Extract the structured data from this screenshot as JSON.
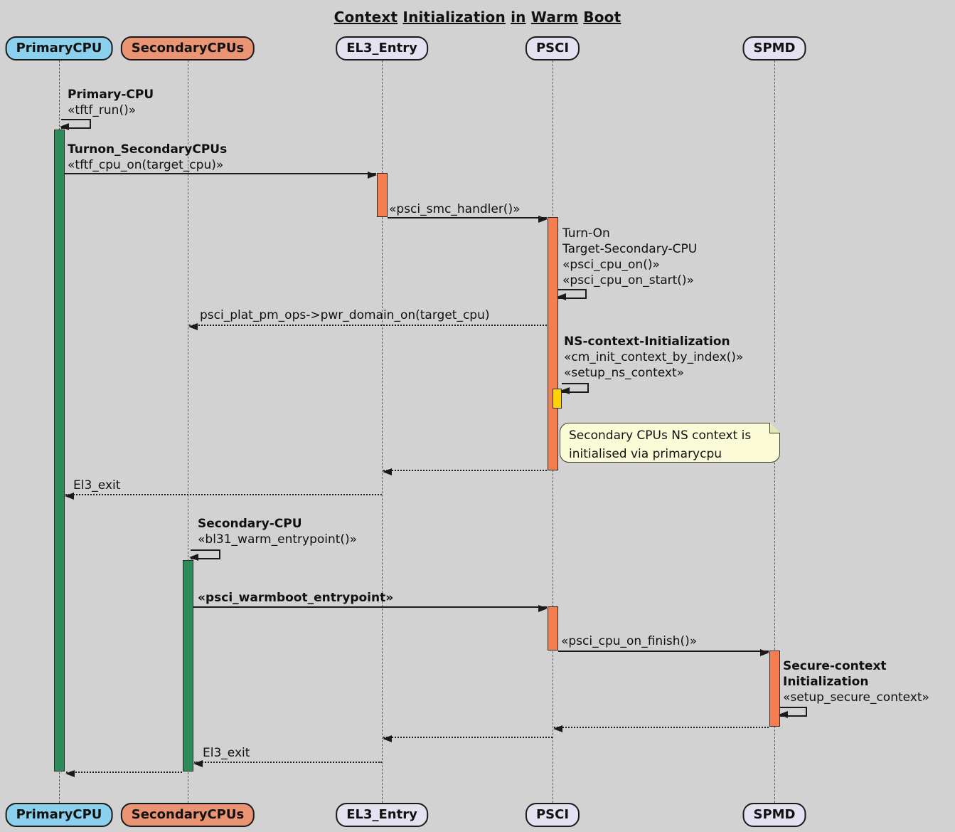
{
  "title": "Context Initialization in Warm Boot",
  "participants": [
    {
      "name": "PrimaryCPU"
    },
    {
      "name": "SecondaryCPUs"
    },
    {
      "name": "EL3_Entry"
    },
    {
      "name": "PSCI"
    },
    {
      "name": "SPMD"
    }
  ],
  "messages": {
    "primary_cpu_run": {
      "title": "Primary-CPU",
      "call": "«tftf_run()»"
    },
    "turnon_secondary": {
      "title": "Turnon_SecondaryCPUs",
      "call": "«tftf_cpu_on(target_cpu)»"
    },
    "smc_handler": {
      "call": "«psci_smc_handler()»"
    },
    "turn_on_target": {
      "line1": "Turn-On",
      "line2": "Target-Secondary-CPU",
      "call1": "«psci_cpu_on()»",
      "call2": "«psci_cpu_on_start()»"
    },
    "pwr_domain_on": {
      "call": "psci_plat_pm_ops->pwr_domain_on(target_cpu)"
    },
    "ns_context_init": {
      "title": "NS-context-Initialization",
      "call1": "«cm_init_context_by_index()»",
      "call2": "«setup_ns_context»"
    },
    "el3_exit_primary": {
      "call": "El3_exit"
    },
    "secondary_cpu_entry": {
      "title": "Secondary-CPU",
      "call": "«bl31_warm_entrypoint()»"
    },
    "warmboot_entrypoint": {
      "call": "«psci_warmboot_entrypoint»"
    },
    "cpu_on_finish": {
      "call": "«psci_cpu_on_finish()»"
    },
    "secure_context_init": {
      "title1": "Secure-context",
      "title2": "Initialization",
      "call": "«setup_secure_context»"
    },
    "el3_exit_secondary": {
      "call": "El3_exit"
    }
  },
  "note": {
    "line1": "Secondary CPUs NS context is",
    "line2": "initialised via primarycpu"
  },
  "colors": {
    "background": "#D2D2D2",
    "primary_cpu_box": "#8BD0EC",
    "secondary_cpus_box": "#EB9474",
    "neutral_participant_box": "#E2E2F0",
    "activation_orange": "#F57E50",
    "activation_green": "#2E8C5A",
    "activation_yellow": "#FFD300",
    "note_background": "#FBFBD7"
  }
}
